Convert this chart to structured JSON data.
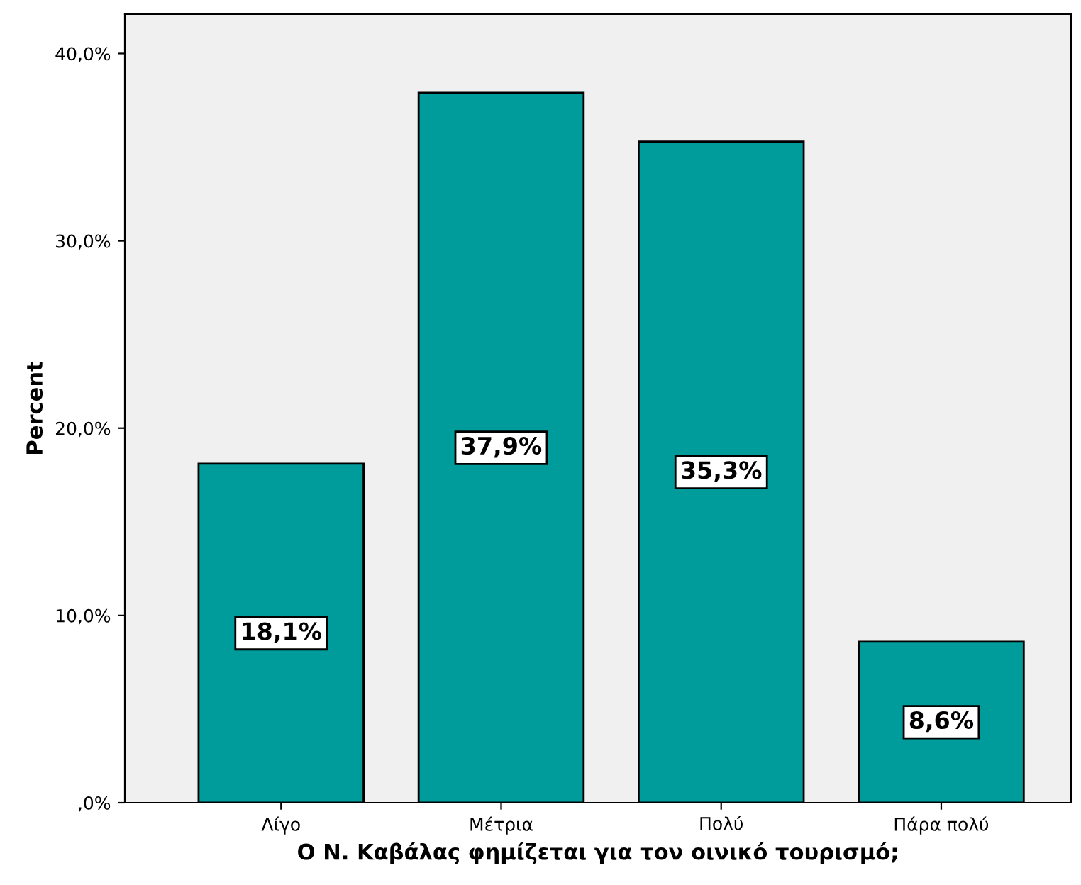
{
  "chart_data": {
    "type": "bar",
    "xlabel": "Ο Ν. Καβάλας φημίζεται για τον οινικό τουρισμό;",
    "ylabel": "Percent",
    "categories": [
      "Λίγο",
      "Μέτρια",
      "Πολύ",
      "Πάρα πολύ"
    ],
    "values": [
      18.1,
      37.9,
      35.3,
      8.6
    ],
    "value_labels": [
      "18,1%",
      "37,9%",
      "35,3%",
      "8,6%"
    ],
    "color": "#009c9c",
    "ylim": [
      0,
      42.1
    ],
    "yticks": [
      {
        "value": 0,
        "label": ",0%"
      },
      {
        "value": 10,
        "label": "10,0%"
      },
      {
        "value": 20,
        "label": "20,0%"
      },
      {
        "value": 30,
        "label": "30,0%"
      },
      {
        "value": 40,
        "label": "40,0%"
      }
    ],
    "grid": false,
    "legend": false
  }
}
